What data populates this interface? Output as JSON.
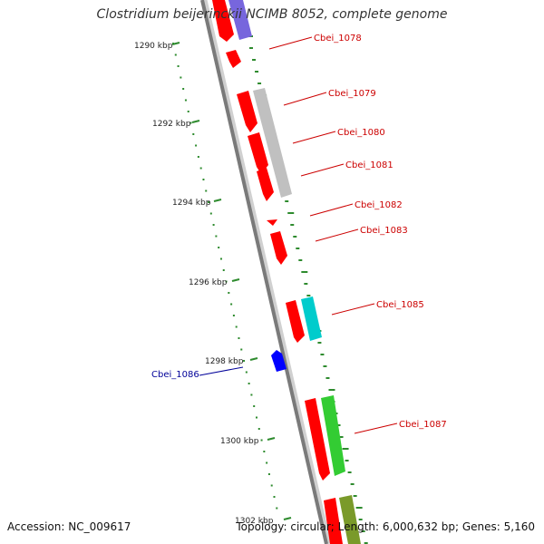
{
  "title": "Clostridium beijerinckii NCIMB 8052, complete genome",
  "accession": "Accession: NC_009617",
  "topology": "Topology: circular; Length: 6,000,632 bp; Genes: 5,160",
  "colors": {
    "backbone": "#808080",
    "tick": "#2e8b2e",
    "gene_red": "#ff0000",
    "gene_blue": "#0000ff",
    "gene_gray": "#c0c0c0",
    "gene_cyan": "#00cccc",
    "gene_green": "#33cc33",
    "gene_olive": "#7a9a2a",
    "gene_purple": "#7766dd",
    "label_red": "#cc0000",
    "label_blue": "#000099"
  },
  "ruler_labels": [
    "1290 kbp",
    "1292 kbp",
    "1294 kbp",
    "1296 kbp",
    "1298 kbp",
    "1300 kbp",
    "1302 kbp"
  ],
  "gene_labels": [
    {
      "text": "Cbei_1078",
      "color": "red"
    },
    {
      "text": "Cbei_1079",
      "color": "red"
    },
    {
      "text": "Cbei_1080",
      "color": "red"
    },
    {
      "text": "Cbei_1081",
      "color": "red"
    },
    {
      "text": "Cbei_1082",
      "color": "red"
    },
    {
      "text": "Cbei_1083",
      "color": "red"
    },
    {
      "text": "Cbei_1085",
      "color": "red"
    },
    {
      "text": "Cbei_1086",
      "color": "blue"
    },
    {
      "text": "Cbei_1087",
      "color": "red"
    }
  ]
}
